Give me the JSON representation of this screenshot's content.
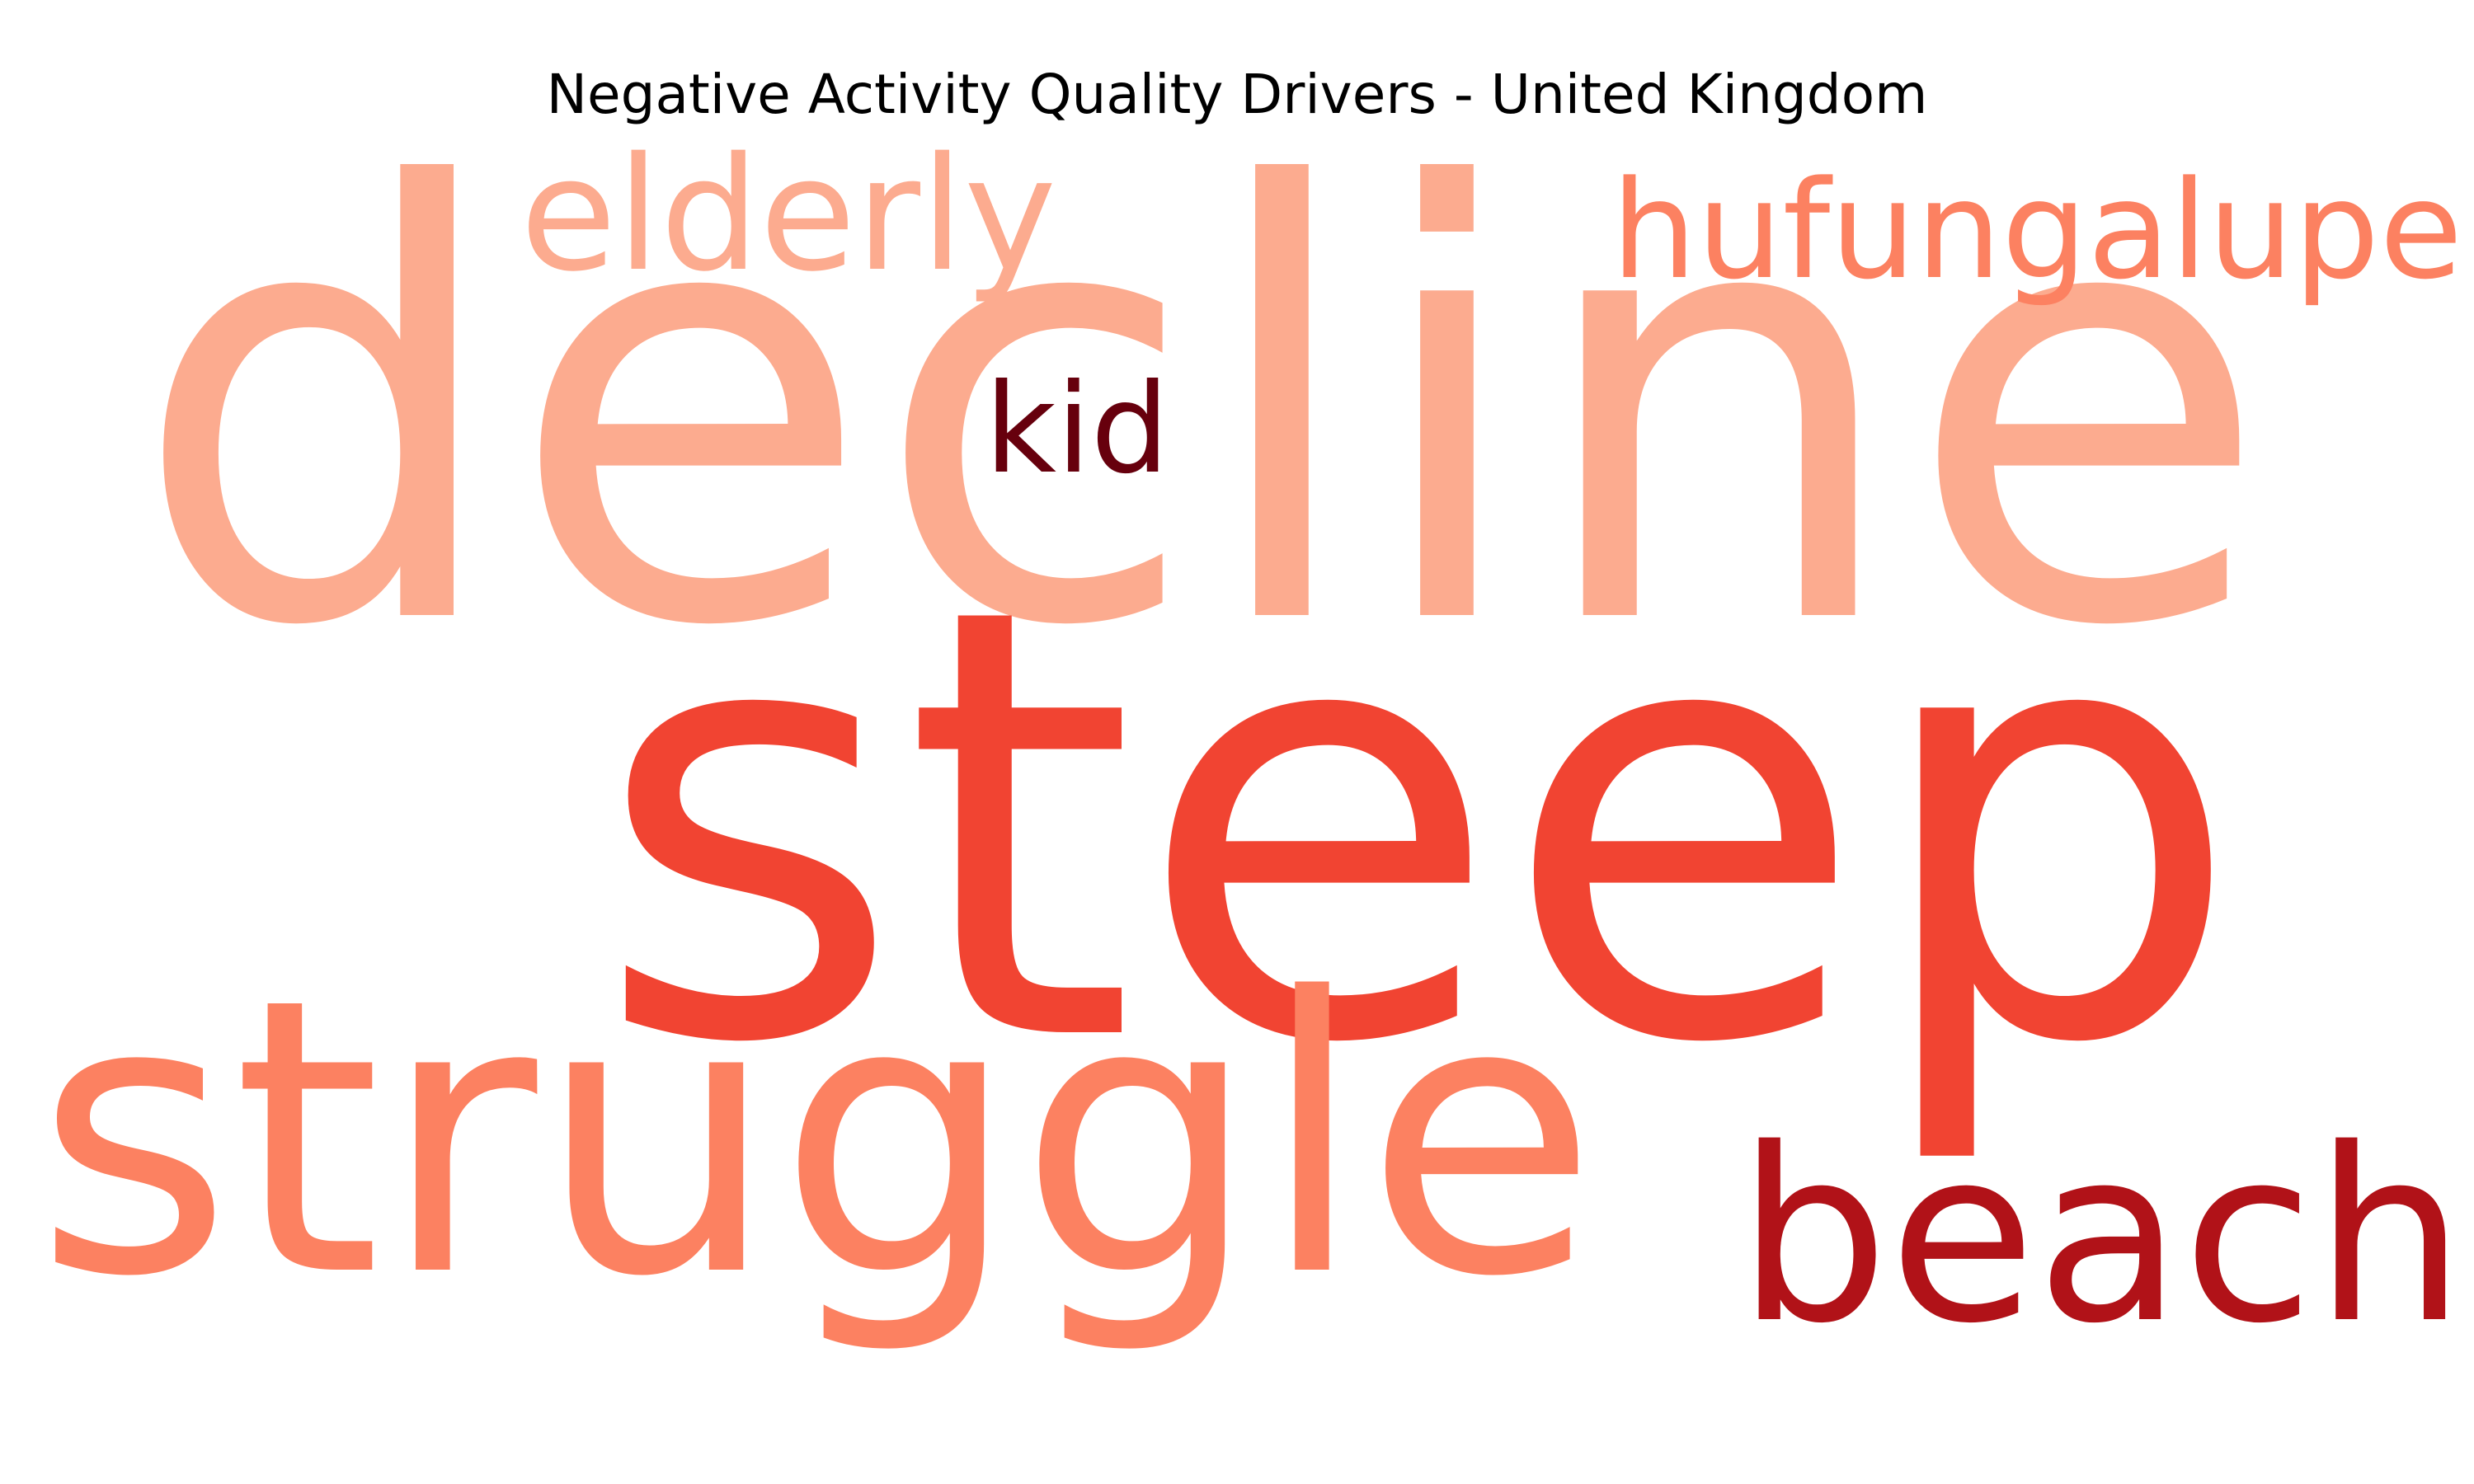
{
  "chart_data": {
    "type": "wordcloud",
    "title": "Negative Activity Quality Drivers - United Kingdom",
    "colormap": "Reds",
    "words": [
      {
        "text": "decline",
        "color": "#fcab8f"
      },
      {
        "text": "steep",
        "color": "#f14432"
      },
      {
        "text": "struggle",
        "color": "#fc8161"
      },
      {
        "text": "beach",
        "color": "#b11218"
      },
      {
        "text": "elderly",
        "color": "#fcab8f"
      },
      {
        "text": "hufungalupe",
        "color": "#fc8161"
      },
      {
        "text": "kid",
        "color": "#67000d"
      }
    ]
  }
}
